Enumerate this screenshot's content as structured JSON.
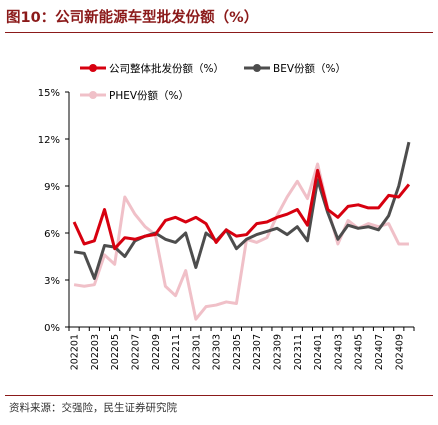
{
  "title": "图10：公司新能源车型批发份额（%）",
  "source": "资料来源：交强险，民生证券研究院",
  "chart_data": {
    "type": "line",
    "ylim": [
      0,
      15
    ],
    "yticks": [
      0,
      3,
      6,
      9,
      12,
      15
    ],
    "ytick_labels": [
      "0%",
      "3%",
      "6%",
      "9%",
      "12%",
      "15%"
    ],
    "grid": false,
    "legend_placement": "top",
    "x": [
      "202201",
      "202202",
      "202203",
      "202204",
      "202205",
      "202206",
      "202207",
      "202208",
      "202209",
      "202210",
      "202211",
      "202212",
      "202301",
      "202302",
      "202303",
      "202304",
      "202305",
      "202306",
      "202307",
      "202308",
      "202309",
      "202310",
      "202311",
      "202312",
      "202401",
      "202402",
      "202403",
      "202404",
      "202405",
      "202406",
      "202407",
      "202408",
      "202409",
      "202410"
    ],
    "x_tick_labels": [
      "202201",
      "202203",
      "202205",
      "202207",
      "202209",
      "202211",
      "202301",
      "202303",
      "202305",
      "202307",
      "202309",
      "202311",
      "202401",
      "202403",
      "202405",
      "202407",
      "202409"
    ],
    "series": [
      {
        "name": "公司整体批发份额（%）",
        "color": "#d7000f",
        "marker": "filled",
        "values": [
          6.7,
          5.3,
          5.5,
          7.5,
          5.0,
          5.7,
          5.6,
          5.8,
          5.9,
          6.8,
          7.0,
          6.7,
          7.0,
          6.6,
          5.4,
          6.2,
          5.8,
          5.9,
          6.6,
          6.7,
          7.0,
          7.2,
          7.5,
          6.5,
          10.0,
          7.5,
          7.0,
          7.7,
          7.8,
          7.6,
          7.6,
          8.4,
          8.3,
          9.1
        ]
      },
      {
        "name": "BEV份额（%）",
        "color": "#4d4d4d",
        "marker": "filled",
        "values": [
          4.8,
          4.7,
          3.1,
          5.2,
          5.1,
          4.5,
          5.5,
          5.8,
          6.0,
          5.6,
          5.4,
          6.0,
          3.8,
          6.0,
          5.5,
          6.2,
          5.0,
          5.6,
          5.9,
          6.1,
          6.3,
          5.9,
          6.4,
          5.5,
          9.4,
          7.3,
          5.6,
          6.5,
          6.3,
          6.4,
          6.2,
          7.1,
          9.0,
          11.8
        ]
      },
      {
        "name": "PHEV份额（%）",
        "color": "#f0c0c8",
        "marker": "filled",
        "values": [
          2.7,
          2.6,
          2.7,
          4.6,
          4.0,
          8.3,
          7.2,
          6.4,
          5.9,
          2.6,
          2.0,
          3.6,
          0.5,
          1.3,
          1.4,
          1.6,
          1.5,
          5.6,
          5.4,
          5.7,
          7.1,
          8.3,
          9.3,
          8.2,
          10.4,
          7.6,
          5.3,
          6.8,
          6.3,
          6.6,
          6.4,
          6.6,
          5.3,
          5.3
        ]
      }
    ]
  }
}
